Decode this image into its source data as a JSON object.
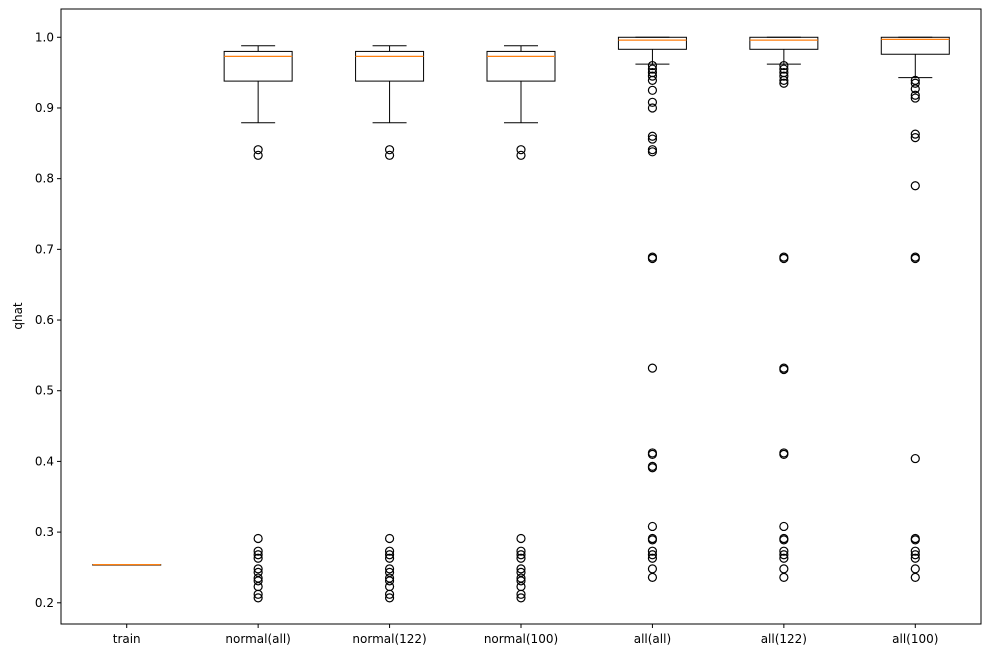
{
  "chart_data": {
    "type": "box",
    "title": "",
    "xlabel": "",
    "ylabel": "qhat",
    "ylim": [
      0.17,
      1.04
    ],
    "yticks": [
      0.2,
      0.3,
      0.4,
      0.5,
      0.6,
      0.7,
      0.8,
      0.9,
      1.0
    ],
    "ytick_labels": [
      "0.2",
      "0.3",
      "0.4",
      "0.5",
      "0.6",
      "0.7",
      "0.8",
      "0.9",
      "1.0"
    ],
    "grid": false,
    "categories": [
      "train",
      "normal(all)",
      "normal(122)",
      "normal(100)",
      "all(all)",
      "all(122)",
      "all(100)"
    ],
    "boxes": [
      {
        "whisker_low": 0.254,
        "q1": 0.254,
        "median": 0.254,
        "q3": 0.254,
        "whisker_high": 0.254,
        "fliers": []
      },
      {
        "whisker_low": 0.879,
        "q1": 0.938,
        "median": 0.973,
        "q3": 0.98,
        "whisker_high": 0.988,
        "fliers": [
          0.841,
          0.833,
          0.291,
          0.273,
          0.268,
          0.263,
          0.248,
          0.243,
          0.235,
          0.231,
          0.223,
          0.212,
          0.207
        ]
      },
      {
        "whisker_low": 0.879,
        "q1": 0.938,
        "median": 0.973,
        "q3": 0.98,
        "whisker_high": 0.988,
        "fliers": [
          0.841,
          0.833,
          0.291,
          0.273,
          0.268,
          0.263,
          0.248,
          0.243,
          0.235,
          0.231,
          0.223,
          0.212,
          0.207
        ]
      },
      {
        "whisker_low": 0.879,
        "q1": 0.938,
        "median": 0.973,
        "q3": 0.98,
        "whisker_high": 0.988,
        "fliers": [
          0.841,
          0.833,
          0.291,
          0.273,
          0.268,
          0.263,
          0.248,
          0.243,
          0.235,
          0.231,
          0.223,
          0.212,
          0.207
        ]
      },
      {
        "whisker_low": 0.962,
        "q1": 0.983,
        "median": 0.996,
        "q3": 1.0,
        "whisker_high": 1.0,
        "fliers": [
          0.96,
          0.955,
          0.95,
          0.945,
          0.939,
          0.925,
          0.908,
          0.9,
          0.86,
          0.856,
          0.841,
          0.838,
          0.689,
          0.687,
          0.532,
          0.412,
          0.41,
          0.393,
          0.391,
          0.308,
          0.291,
          0.289,
          0.273,
          0.268,
          0.263,
          0.248,
          0.236
        ]
      },
      {
        "whisker_low": 0.962,
        "q1": 0.983,
        "median": 0.996,
        "q3": 1.0,
        "whisker_high": 1.0,
        "fliers": [
          0.96,
          0.955,
          0.95,
          0.945,
          0.939,
          0.935,
          0.689,
          0.687,
          0.532,
          0.53,
          0.412,
          0.41,
          0.308,
          0.291,
          0.289,
          0.273,
          0.268,
          0.263,
          0.248,
          0.236
        ]
      },
      {
        "whisker_low": 0.943,
        "q1": 0.976,
        "median": 0.997,
        "q3": 1.0,
        "whisker_high": 1.0,
        "fliers": [
          0.939,
          0.935,
          0.927,
          0.918,
          0.914,
          0.863,
          0.858,
          0.79,
          0.689,
          0.687,
          0.404,
          0.291,
          0.289,
          0.273,
          0.268,
          0.263,
          0.248,
          0.236
        ]
      }
    ],
    "colors": {
      "box": "#000000",
      "median": "#ff7f0e",
      "flier": "#000000"
    }
  }
}
